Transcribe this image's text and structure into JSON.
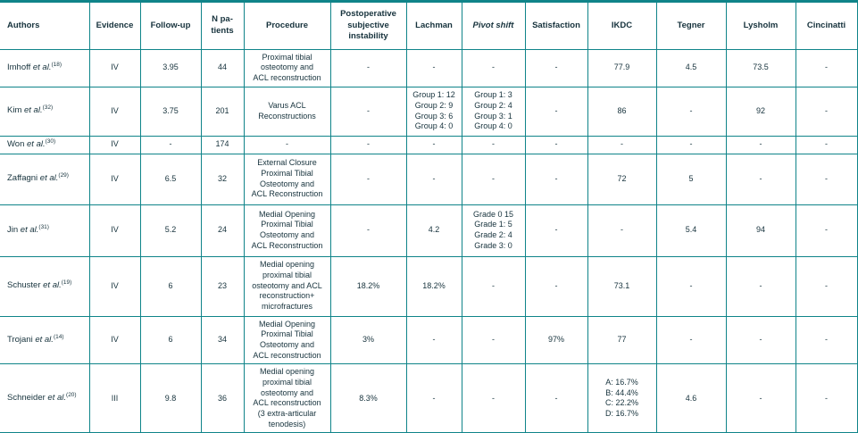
{
  "accent_color": "#0f8489",
  "text_color": "#16323c",
  "table": {
    "columns": [
      {
        "key": "authors",
        "label": "Authors",
        "align": "left"
      },
      {
        "key": "evidence",
        "label": "Evidence"
      },
      {
        "key": "followup",
        "label": "Follow-up"
      },
      {
        "key": "n",
        "label": [
          "N pa-",
          "tients"
        ]
      },
      {
        "key": "procedure",
        "label": "Procedure"
      },
      {
        "key": "instability",
        "label": [
          "Postoperative",
          "subjective",
          "instability"
        ]
      },
      {
        "key": "lachman",
        "label": "Lachman"
      },
      {
        "key": "pivot",
        "label": "Pivot shift",
        "italic": true
      },
      {
        "key": "satisfaction",
        "label": "Satisfaction"
      },
      {
        "key": "ikdc",
        "label": "IKDC"
      },
      {
        "key": "tegner",
        "label": "Tegner"
      },
      {
        "key": "lysholm",
        "label": "Lysholm"
      },
      {
        "key": "cincinatti",
        "label": "Cincinatti"
      }
    ],
    "rows": [
      {
        "author": {
          "name": "Imhoff ",
          "etal": "et al.",
          "ref": "(18)"
        },
        "evidence": "IV",
        "followup": "3.95",
        "n": "44",
        "procedure": [
          "Proximal tibial",
          "osteotomy and",
          "ACL reconstruction"
        ],
        "instability": "-",
        "lachman": "-",
        "pivot": "-",
        "satisfaction": "-",
        "ikdc": "77.9",
        "tegner": "4.5",
        "lysholm": "73.5",
        "cincinatti": "-"
      },
      {
        "author": {
          "name": "Kim ",
          "etal": "et al.",
          "ref": "(32)"
        },
        "evidence": "IV",
        "followup": "3.75",
        "n": "201",
        "procedure": [
          "Varus ACL",
          "Reconstructions"
        ],
        "instability": "-",
        "lachman": [
          "Group 1: 12",
          "Group 2: 9",
          "Group 3: 6",
          "Group 4: 0"
        ],
        "pivot": [
          "Group 1: 3",
          "Group 2: 4",
          "Group 3: 1",
          "Group 4: 0"
        ],
        "satisfaction": "-",
        "ikdc": "86",
        "tegner": "-",
        "lysholm": "92",
        "cincinatti": "-"
      },
      {
        "author": {
          "name": "Won ",
          "etal": "et al.",
          "ref": "(30)"
        },
        "evidence": "IV",
        "followup": "-",
        "n": "174",
        "procedure": "-",
        "instability": "-",
        "lachman": "-",
        "pivot": "-",
        "satisfaction": "-",
        "ikdc": "-",
        "tegner": "-",
        "lysholm": "-",
        "cincinatti": "-"
      },
      {
        "author": {
          "name": "Zaffagni ",
          "etal": "et al.",
          "ref": "(29)"
        },
        "evidence": "IV",
        "followup": "6.5",
        "n": "32",
        "procedure": [
          "External Closure",
          "Proximal Tibial",
          "Osteotomy and",
          "ACL Reconstruction"
        ],
        "instability": "-",
        "lachman": "-",
        "pivot": "-",
        "satisfaction": "-",
        "ikdc": "72",
        "tegner": "5",
        "lysholm": "-",
        "cincinatti": "-"
      },
      {
        "author": {
          "name": "Jin ",
          "etal": "et al.",
          "ref": "(31)"
        },
        "evidence": "IV",
        "followup": "5.2",
        "n": "24",
        "procedure": [
          "Medial Opening",
          "Proximal Tibial",
          "Osteotomy and",
          "ACL Reconstruction"
        ],
        "instability": "-",
        "lachman": "4.2",
        "pivot": [
          "Grade 0 15",
          "Grade 1: 5",
          "Grade 2: 4",
          "Grade 3: 0"
        ],
        "satisfaction": "-",
        "ikdc": "-",
        "tegner": "5.4",
        "lysholm": "94",
        "cincinatti": "-"
      },
      {
        "author": {
          "name": "Schuster ",
          "etal": "et al.",
          "ref": "(19)"
        },
        "evidence": "IV",
        "followup": "6",
        "n": "23",
        "procedure": [
          "Medial opening",
          "proximal tibial",
          "osteotomy and ACL",
          "reconstruction+",
          "microfractures"
        ],
        "instability": "18.2%",
        "lachman": "18.2%",
        "pivot": "-",
        "satisfaction": "-",
        "ikdc": "73.1",
        "tegner": "-",
        "lysholm": "-",
        "cincinatti": "-"
      },
      {
        "author": {
          "name": "Trojani ",
          "etal": "et al.",
          "ref": "(14)"
        },
        "evidence": "IV",
        "followup": "6",
        "n": "34",
        "procedure": [
          "Medial Opening",
          "Proximal Tibial",
          "Osteotomy and",
          "ACL reconstruction"
        ],
        "instability": "3%",
        "lachman": "-",
        "pivot": "-",
        "satisfaction": "97%",
        "ikdc": "77",
        "tegner": "-",
        "lysholm": "-",
        "cincinatti": "-"
      },
      {
        "author": {
          "name": "Schneider ",
          "etal": "et al.",
          "ref": "(20)"
        },
        "evidence": "III",
        "followup": "9.8",
        "n": "36",
        "procedure": [
          "Medial opening",
          "proximal tibial",
          "osteotomy and",
          "ACL reconstruction",
          "(3 extra-articular",
          "tenodesis)"
        ],
        "instability": "8.3%",
        "lachman": "-",
        "pivot": "-",
        "satisfaction": "-",
        "ikdc": [
          "A: 16.7%",
          "B: 44.4%",
          "C: 22.2%",
          "D: 16.7%"
        ],
        "tegner": "4.6",
        "lysholm": "-",
        "cincinatti": "-"
      }
    ]
  }
}
